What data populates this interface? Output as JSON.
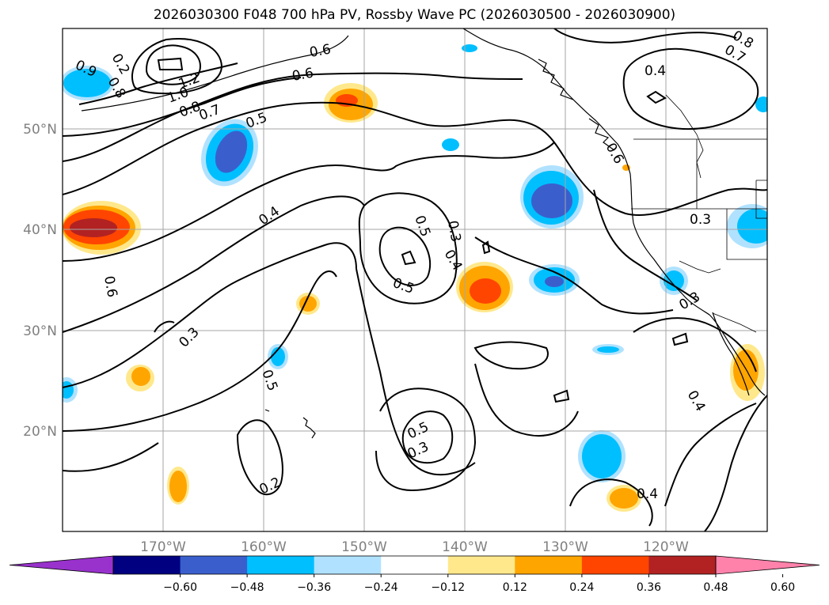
{
  "title": "2026030300 F048 700 hPa PV, Rossby Wave PC (2026030500 - 2026030900)",
  "lat_labels": [
    "50°N",
    "40°N",
    "30°N",
    "20°N"
  ],
  "lon_labels": [
    "170°W",
    "160°W",
    "150°W",
    "140°W",
    "130°W",
    "120°W"
  ],
  "contour_labels": [
    "0.9",
    "0.8",
    "1.2",
    "1.0",
    "0.8",
    "0.7",
    "0.6",
    "0.5",
    "0.4",
    "0.6",
    "0.7",
    "0.8",
    "0.4",
    "0.6",
    "0.3",
    "0.5",
    "0.3",
    "0.4",
    "0.5",
    "0.6",
    "0.3",
    "0.5",
    "0.2",
    "0.3",
    "0.5",
    "0.4",
    "0.3",
    "0.4",
    "0.2"
  ],
  "colorbar": {
    "ticks": [
      "−0.60",
      "−0.48",
      "−0.36",
      "−0.24",
      "−0.12",
      "0.12",
      "0.24",
      "0.36",
      "0.48",
      "0.60"
    ],
    "colors": [
      "#9932cc",
      "#000080",
      "#3a5fcd",
      "#00bfff",
      "#b0e2ff",
      "#ffffff",
      "#ffe88c",
      "#ffa500",
      "#ff4500",
      "#b22222",
      "#ff82ab"
    ]
  }
}
